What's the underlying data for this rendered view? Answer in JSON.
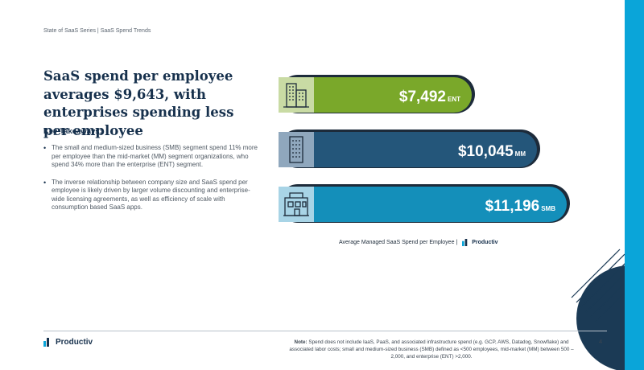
{
  "breadcrumb": "State of SaaS Series  |  SaaS Spend Trends",
  "title": "SaaS spend per employee averages $9,643, with enterprises spending less per employee",
  "key_takeaways": {
    "heading": "Key Takeaways:",
    "items": [
      "The small and medium-sized business (SMB) segment spend 11% more per employee than the mid-market (MM) segment organizations, who spend 34% more than the enterprise (ENT) segment.",
      "The inverse relationship between company size and SaaS spend per employee is likely driven by larger volume discounting and enterprise-wide licensing agreements, as well as efficiency of scale with consumption based SaaS apps."
    ]
  },
  "chart_data": {
    "type": "bar",
    "orientation": "horizontal",
    "categories": [
      "ENT",
      "MM",
      "SMB"
    ],
    "values": [
      7492,
      10045,
      11196
    ],
    "value_labels": [
      "$7,492",
      "$10,045",
      "$11,196"
    ],
    "icons": [
      "office-building-icon",
      "tower-building-icon",
      "storefront-icon"
    ],
    "colors": [
      "#7aa82a",
      "#24567a",
      "#148fba"
    ],
    "caption": "Average Managed SaaS Spend per Employee  |"
  },
  "brand": {
    "name": "Productiv",
    "mark": "®"
  },
  "footer": {
    "note_label": "Note:",
    "note_text": "Spend does not include IaaS, PaaS, and associated infrastructure spend (e.g. GCP, AWS, Datadog, Snowflake) and associated labor costs; small and medium-sized business (SMB) defined as <500 employees, mid-market (MM) between 500 – 2,000, and enterprise (ENT) >2,000.",
    "page_number": "4"
  },
  "colors": {
    "accent": "#0aa5d9",
    "navy": "#17314d"
  }
}
